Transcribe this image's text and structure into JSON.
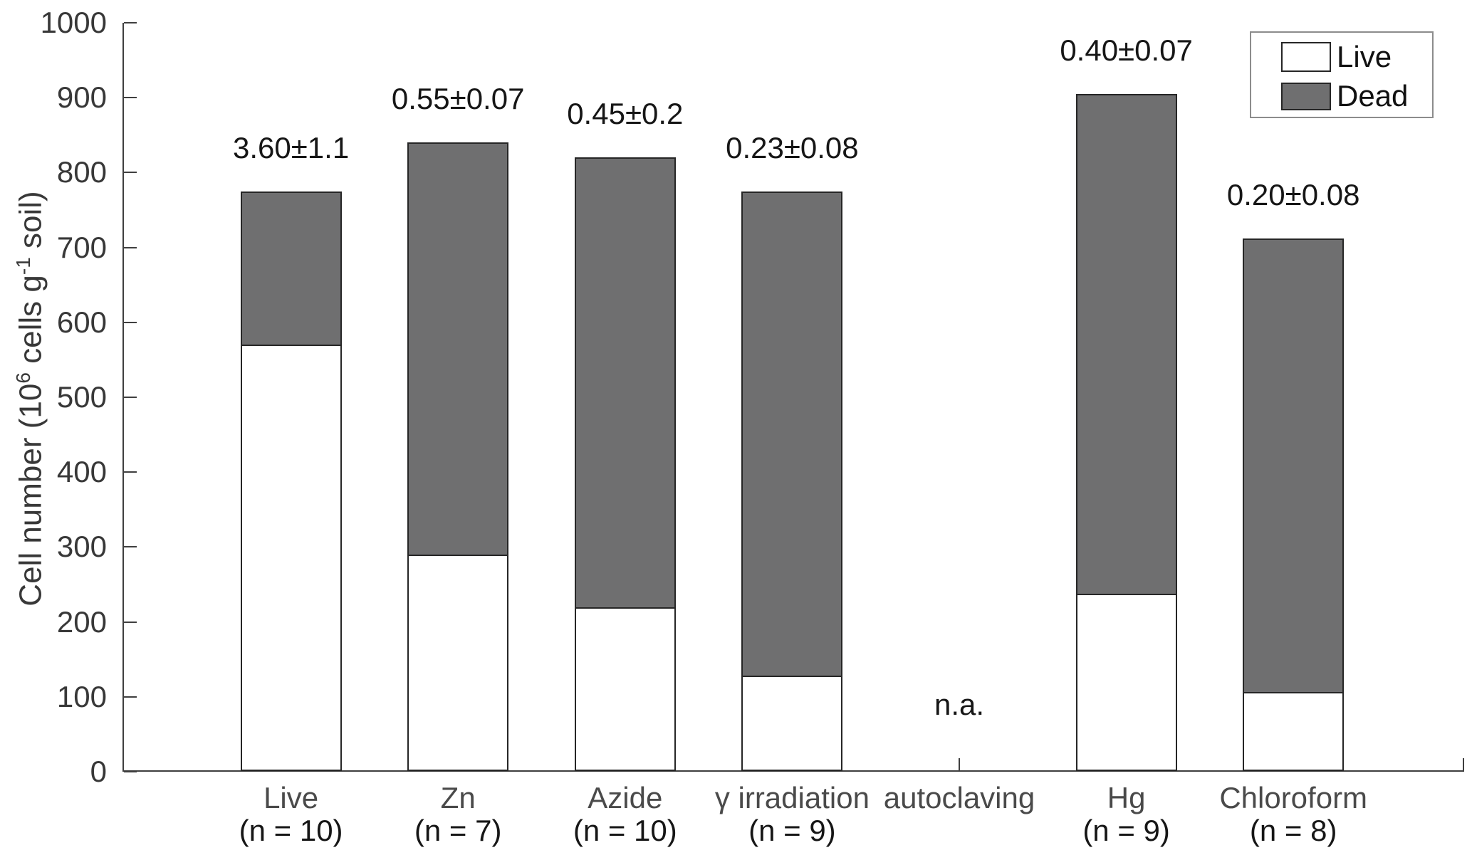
{
  "figure": {
    "background": "#ffffff"
  },
  "chart_data": {
    "type": "bar",
    "subtype": "stacked-vertical",
    "title": "",
    "ylabel": "Cell number (10^6 cells g^-1 soil)",
    "ylabel_segments": [
      {
        "t": "Cell number (10"
      },
      {
        "t": "6",
        "sup": true
      },
      {
        "t": " cells g"
      },
      {
        "t": "-1",
        "sup": true
      },
      {
        "t": " soil)"
      }
    ],
    "xlabel": "",
    "ylim": [
      0,
      1000
    ],
    "yticks": [
      0,
      100,
      200,
      300,
      400,
      500,
      600,
      700,
      800,
      900,
      1000
    ],
    "grid": false,
    "legend_position": "upper-right",
    "legend": [
      {
        "label": "Live",
        "key": "live"
      },
      {
        "label": "Dead",
        "key": "dead"
      }
    ],
    "colors": {
      "live": "#ffffff",
      "dead": "#6f6f70",
      "bar_edge": "#262626",
      "axis": "#3f3f3f"
    },
    "categories": [
      {
        "label": "Live",
        "n_label": "(n = 10)",
        "live": 570,
        "dead": 205,
        "total": 775,
        "annotation": "3.60±1.1"
      },
      {
        "label": "Zn",
        "n_label": "(n = 7)",
        "live": 290,
        "dead": 550,
        "total": 840,
        "annotation": "0.55±0.07"
      },
      {
        "label": "Azide",
        "n_label": "(n = 10)",
        "live": 220,
        "dead": 600,
        "total": 820,
        "annotation": "0.45±0.2"
      },
      {
        "label": "γ irradiation",
        "n_label": "(n = 9)",
        "live": 128,
        "dead": 647,
        "total": 775,
        "annotation": "0.23±0.08"
      },
      {
        "label": "autoclaving",
        "n_label": "",
        "live": null,
        "dead": null,
        "total": null,
        "annotation": "n.a."
      },
      {
        "label": "Hg",
        "n_label": "(n = 9)",
        "live": 238,
        "dead": 667,
        "total": 905,
        "annotation": "0.40±0.07"
      },
      {
        "label": "Chloroform",
        "n_label": "(n = 8)",
        "live": 106,
        "dead": 606,
        "total": 712,
        "annotation": "0.20±0.08"
      }
    ]
  }
}
